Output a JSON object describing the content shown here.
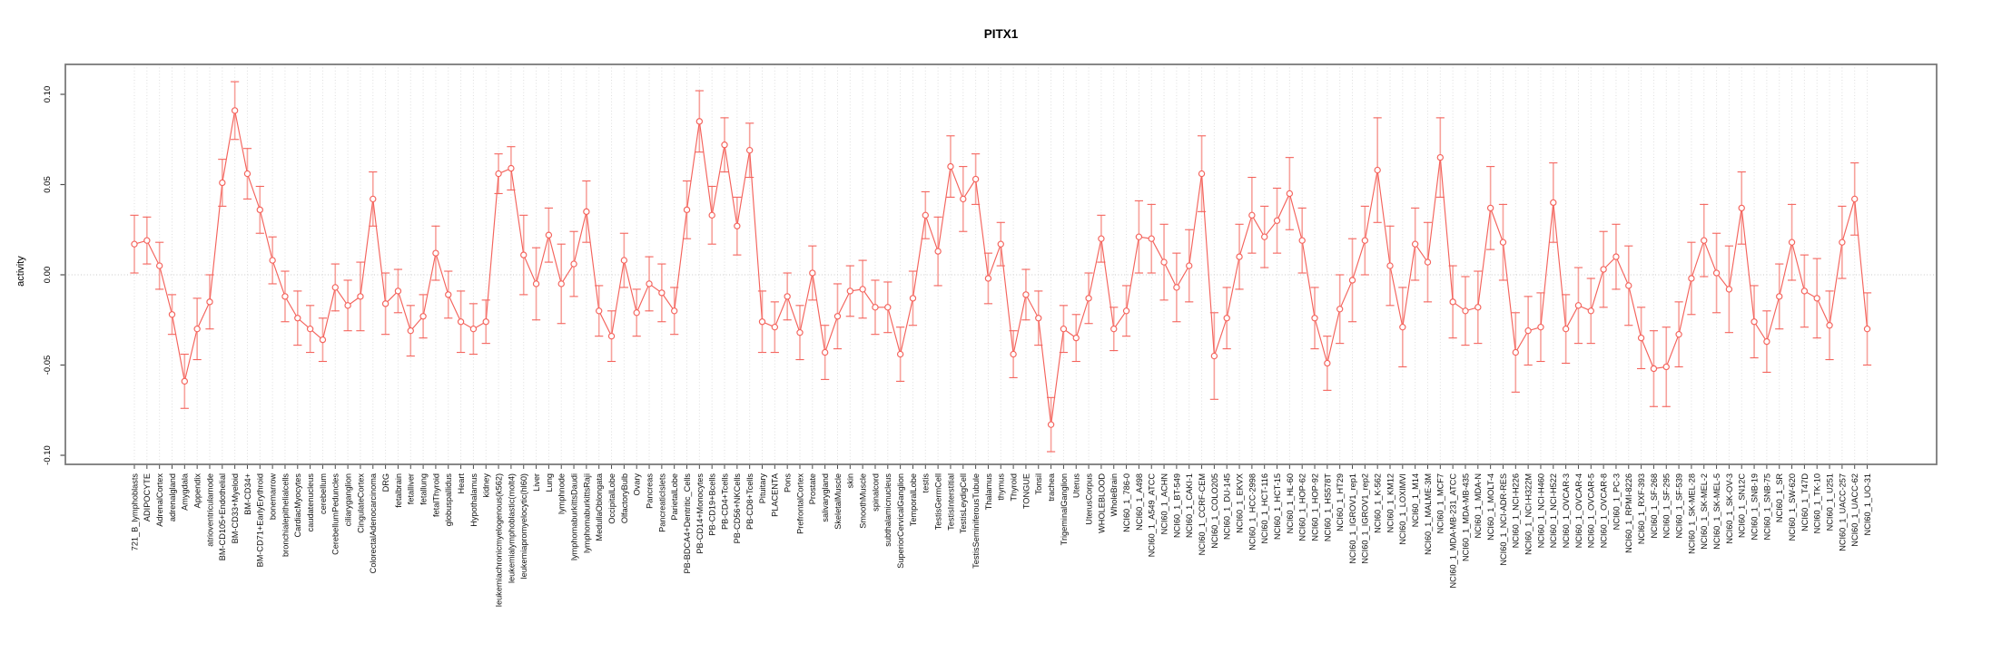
{
  "chart_data": {
    "type": "scatter",
    "title": "PITX1",
    "xlabel": "",
    "ylabel": "activity",
    "ylim": [
      -0.105,
      0.115
    ],
    "yticks": [
      0.1,
      0.05,
      0.0,
      -0.05,
      -0.1
    ],
    "ytick_labels": [
      "0.10",
      "0.05",
      "0.00",
      "-0.05",
      "-0.10"
    ],
    "grid": "dotted vertical gridline per category, dotted horizontal line at 0",
    "legend_position": "none",
    "marker": "open-circle with symmetric error bars, points connected by line",
    "colors": {
      "series": "#f4635c",
      "error_bar": "#f7a29c",
      "gridline": "#dedede",
      "zero_line": "#c9c9c9",
      "box": "#7a7a7a",
      "text": "#000000"
    },
    "categories": [
      "721_B_lymphoblasts",
      "ADIPOCYTE",
      "AdrenalCortex",
      "adrenalgland",
      "Amygdala",
      "Appendix",
      "atrioventricularnode",
      "BM-CD105+Endothelial",
      "BM-CD33+Myeloid",
      "BM-CD34+",
      "BM-CD71+EarlyErythroid",
      "bonemarrow",
      "bronchialepithelialcells",
      "CardiacMyocytes",
      "caudatenucleus",
      "cerebellum",
      "CerebellumPeduncles",
      "ciliaryganglion",
      "CingulateCortex",
      "ColorectalAdenocarcinoma",
      "DRG",
      "fetalbrain",
      "fetalliver",
      "fetallung",
      "fetalThyroid",
      "globuspallidus",
      "Heart",
      "Hypothalamus",
      "kidney",
      "leukemiachronicmyelogenous(k562)",
      "leukemialymphoblastic(molt4)",
      "leukemiapromyelocytic(hl60)",
      "Liver",
      "Lung",
      "lymphnode",
      "lymphomaburkittsDaudi",
      "lymphomaburkittsRaji",
      "MedullaOblongata",
      "OccipitalLobe",
      "OlfactoryBulb",
      "Ovary",
      "Pancreas",
      "PancreaticIslets",
      "ParietalLobe",
      "PB-BDCA4+Dentritic_Cells",
      "PB-CD14+Monocytes",
      "PB-CD19+Bcells",
      "PB-CD4+Tcells",
      "PB-CD56+NKCells",
      "PB-CD8+Tcells",
      "Pituitary",
      "PLACENTA",
      "Pons",
      "PrefrontalCortex",
      "Prostate",
      "salivarygland",
      "SkeletalMuscle",
      "skin",
      "SmoothMuscle",
      "spinalcord",
      "subthalamicnucleus",
      "SuperiorCervicalGanglion",
      "TemporalLobe",
      "testis",
      "TestisGermCell",
      "TestisInterstitial",
      "TestisLeydigCell",
      "TestisSeminiferousTubule",
      "Thalamus",
      "thymus",
      "Thyroid",
      "TONGUE",
      "Tonsil",
      "trachea",
      "TrigeminalGanglion",
      "Uterus",
      "UterusCorpus",
      "WHOLEBLOOD",
      "WholeBrain",
      "NCI60_1_786-0",
      "NCI60_1_A498",
      "NCI60_1_A549_ATCC",
      "NCI60_1_ACHN",
      "NCI60_1_BT-549",
      "NCI60_1_CAKI-1",
      "NCI60_1_CCRF-CEM",
      "NCI60_1_COLO205",
      "NCI60_1_DU-145",
      "NCI60_1_EKVX",
      "NCI60_1_HCC-2998",
      "NCI60_1_HCT-116",
      "NCI60_1_HCT-15",
      "NCI60_1_HL-60",
      "NCI60_1_HOP-62",
      "NCI60_1_HOP-92",
      "NCI60_1_HS578T",
      "NCI60_1_HT29",
      "NCI60_1_IGROV1_rep1",
      "NCI60_1_IGROV1_rep2",
      "NCI60_1_K-562",
      "NCI60_1_KM12",
      "NCI60_1_LOXIMVI",
      "NCI60_1_M14",
      "NCI60_1_MALME-3M",
      "NCI60_1_MCF7",
      "NCI60_1_MDA-MB-231_ATCC",
      "NCI60_1_MDA-MB-435",
      "NCI60_1_MDA-N",
      "NCI60_1_MOLT-4",
      "NCI60_1_NCI-ADR-RES",
      "NCI60_1_NCI-H226",
      "NCI60_1_NCI-H322M",
      "NCI60_1_NCI-H460",
      "NCI60_1_NCI-H522",
      "NCI60_1_OVCAR-3",
      "NCI60_1_OVCAR-4",
      "NCI60_1_OVCAR-5",
      "NCI60_1_OVCAR-8",
      "NCI60_1_PC-3",
      "NCI60_1_RPMI-8226",
      "NCI60_1_RXF-393",
      "NCI60_1_SF-268",
      "NCI60_1_SF-295",
      "NCI60_1_SF-539",
      "NCI60_1_SK-MEL-28",
      "NCI60_1_SK-MEL-2",
      "NCI60_1_SK-MEL-5",
      "NCI60_1_SK-OV-3",
      "NCI60_1_SN12C",
      "NCI60_1_SNB-19",
      "NCI60_1_SNB-75",
      "NCI60_1_SR",
      "NCI60_1_SW-620",
      "NCI60_1_T47D",
      "NCI60_1_TK-10",
      "NCI60_1_U251",
      "NCI60_1_UACC-257",
      "NCI60_1_UACC-62",
      "NCI60_1_UO-31"
    ],
    "values": [
      0.017,
      0.019,
      0.005,
      -0.022,
      -0.059,
      -0.03,
      -0.015,
      0.051,
      0.091,
      0.056,
      0.036,
      0.008,
      -0.012,
      -0.024,
      -0.03,
      -0.036,
      -0.007,
      -0.017,
      -0.012,
      0.042,
      -0.016,
      -0.009,
      -0.031,
      -0.023,
      0.012,
      -0.011,
      -0.026,
      -0.03,
      -0.026,
      0.056,
      0.059,
      0.011,
      -0.005,
      0.022,
      -0.005,
      0.006,
      0.035,
      -0.02,
      -0.034,
      0.008,
      -0.021,
      -0.005,
      -0.01,
      -0.02,
      0.036,
      0.085,
      0.033,
      0.072,
      0.027,
      0.069,
      -0.026,
      -0.029,
      -0.012,
      -0.032,
      0.001,
      -0.043,
      -0.023,
      -0.009,
      -0.008,
      -0.018,
      -0.018,
      -0.044,
      -0.013,
      0.033,
      0.013,
      0.06,
      0.042,
      0.053,
      -0.002,
      0.017,
      -0.044,
      -0.011,
      -0.024,
      -0.083,
      -0.03,
      -0.035,
      -0.013,
      0.02,
      -0.03,
      -0.02,
      0.021,
      0.02,
      0.007,
      -0.007,
      0.005,
      0.056,
      -0.045,
      -0.024,
      0.01,
      0.033,
      0.021,
      0.03,
      0.045,
      0.019,
      -0.024,
      -0.049,
      -0.019,
      -0.003,
      0.019,
      0.058,
      0.005,
      -0.029,
      0.017,
      0.007,
      0.065,
      -0.015,
      -0.02,
      -0.018,
      0.037,
      0.018,
      -0.043,
      -0.031,
      -0.029,
      0.04,
      -0.03,
      -0.017,
      -0.02,
      0.003,
      0.01,
      -0.006,
      -0.035,
      -0.052,
      -0.051,
      -0.033,
      -0.002,
      0.019,
      0.001,
      -0.008,
      0.037,
      -0.026,
      -0.037,
      -0.012,
      0.018,
      -0.009,
      -0.013,
      -0.028,
      0.018,
      0.042,
      -0.03
    ],
    "errors": [
      0.016,
      0.013,
      0.013,
      0.011,
      0.015,
      0.017,
      0.015,
      0.013,
      0.016,
      0.014,
      0.013,
      0.013,
      0.014,
      0.015,
      0.013,
      0.012,
      0.013,
      0.014,
      0.019,
      0.015,
      0.017,
      0.012,
      0.014,
      0.012,
      0.015,
      0.013,
      0.017,
      0.014,
      0.012,
      0.011,
      0.012,
      0.022,
      0.02,
      0.015,
      0.022,
      0.018,
      0.017,
      0.014,
      0.014,
      0.015,
      0.013,
      0.015,
      0.016,
      0.013,
      0.016,
      0.017,
      0.016,
      0.015,
      0.016,
      0.015,
      0.017,
      0.014,
      0.013,
      0.015,
      0.015,
      0.015,
      0.018,
      0.014,
      0.016,
      0.015,
      0.014,
      0.015,
      0.015,
      0.013,
      0.019,
      0.017,
      0.018,
      0.014,
      0.014,
      0.012,
      0.013,
      0.014,
      0.015,
      0.015,
      0.013,
      0.013,
      0.014,
      0.013,
      0.012,
      0.014,
      0.02,
      0.019,
      0.021,
      0.019,
      0.02,
      0.021,
      0.024,
      0.017,
      0.018,
      0.021,
      0.017,
      0.018,
      0.02,
      0.018,
      0.017,
      0.015,
      0.019,
      0.023,
      0.019,
      0.029,
      0.022,
      0.022,
      0.02,
      0.022,
      0.022,
      0.02,
      0.019,
      0.02,
      0.023,
      0.021,
      0.022,
      0.019,
      0.019,
      0.022,
      0.019,
      0.021,
      0.018,
      0.021,
      0.018,
      0.022,
      0.017,
      0.021,
      0.022,
      0.018,
      0.02,
      0.02,
      0.022,
      0.024,
      0.02,
      0.02,
      0.017,
      0.018,
      0.021,
      0.02,
      0.022,
      0.019,
      0.02,
      0.02,
      0.02
    ]
  }
}
